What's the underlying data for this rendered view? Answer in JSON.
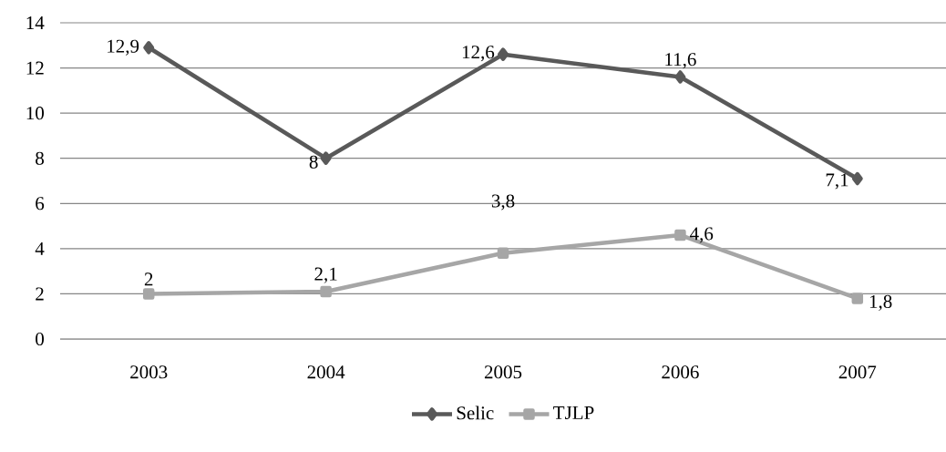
{
  "chart_data": {
    "type": "line",
    "categories": [
      "2003",
      "2004",
      "2005",
      "2006",
      "2007"
    ],
    "series": [
      {
        "name": "Selic",
        "color": "#595959",
        "marker": "diamond",
        "values": [
          12.9,
          8,
          12.6,
          11.6,
          7.1
        ],
        "value_labels": [
          "12,9",
          "8",
          "12,6",
          "11,6",
          "7,1"
        ]
      },
      {
        "name": "TJLP",
        "color": "#a6a6a6",
        "marker": "square",
        "values": [
          2,
          2.1,
          3.8,
          4.6,
          1.8
        ],
        "value_labels": [
          "2",
          "2,1",
          "3,8",
          "4,6",
          "1,8"
        ]
      }
    ],
    "ylim": [
      0,
      14
    ],
    "yticks": [
      0,
      2,
      4,
      6,
      8,
      10,
      12,
      14
    ],
    "grid": "y",
    "legend": "bottom",
    "line_style": "solid"
  }
}
